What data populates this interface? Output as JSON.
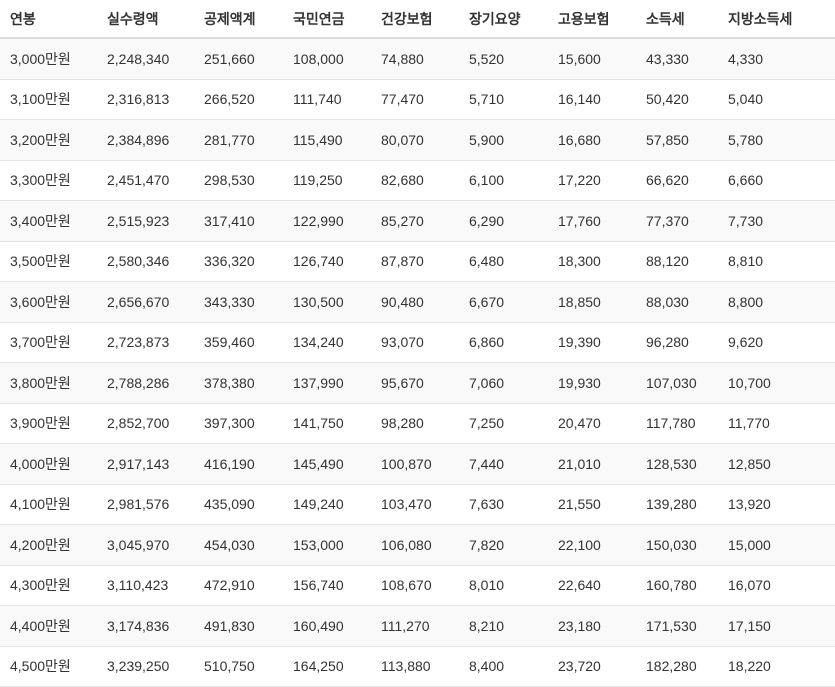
{
  "table": {
    "header": [
      "연봉",
      "실수령액",
      "공제액계",
      "국민연금",
      "건강보험",
      "장기요양",
      "고용보험",
      "소득세",
      "지방소득세"
    ],
    "rows": [
      [
        "3,000만원",
        "2,248,340",
        "251,660",
        "108,000",
        "74,880",
        "5,520",
        "15,600",
        "43,330",
        "4,330"
      ],
      [
        "3,100만원",
        "2,316,813",
        "266,520",
        "111,740",
        "77,470",
        "5,710",
        "16,140",
        "50,420",
        "5,040"
      ],
      [
        "3,200만원",
        "2,384,896",
        "281,770",
        "115,490",
        "80,070",
        "5,900",
        "16,680",
        "57,850",
        "5,780"
      ],
      [
        "3,300만원",
        "2,451,470",
        "298,530",
        "119,250",
        "82,680",
        "6,100",
        "17,220",
        "66,620",
        "6,660"
      ],
      [
        "3,400만원",
        "2,515,923",
        "317,410",
        "122,990",
        "85,270",
        "6,290",
        "17,760",
        "77,370",
        "7,730"
      ],
      [
        "3,500만원",
        "2,580,346",
        "336,320",
        "126,740",
        "87,870",
        "6,480",
        "18,300",
        "88,120",
        "8,810"
      ],
      [
        "3,600만원",
        "2,656,670",
        "343,330",
        "130,500",
        "90,480",
        "6,670",
        "18,850",
        "88,030",
        "8,800"
      ],
      [
        "3,700만원",
        "2,723,873",
        "359,460",
        "134,240",
        "93,070",
        "6,860",
        "19,390",
        "96,280",
        "9,620"
      ],
      [
        "3,800만원",
        "2,788,286",
        "378,380",
        "137,990",
        "95,670",
        "7,060",
        "19,930",
        "107,030",
        "10,700"
      ],
      [
        "3,900만원",
        "2,852,700",
        "397,300",
        "141,750",
        "98,280",
        "7,250",
        "20,470",
        "117,780",
        "11,770"
      ],
      [
        "4,000만원",
        "2,917,143",
        "416,190",
        "145,490",
        "100,870",
        "7,440",
        "21,010",
        "128,530",
        "12,850"
      ],
      [
        "4,100만원",
        "2,981,576",
        "435,090",
        "149,240",
        "103,470",
        "7,630",
        "21,550",
        "139,280",
        "13,920"
      ],
      [
        "4,200만원",
        "3,045,970",
        "454,030",
        "153,000",
        "106,080",
        "7,820",
        "22,100",
        "150,030",
        "15,000"
      ],
      [
        "4,300만원",
        "3,110,423",
        "472,910",
        "156,740",
        "108,670",
        "8,010",
        "22,640",
        "160,780",
        "16,070"
      ],
      [
        "4,400만원",
        "3,174,836",
        "491,830",
        "160,490",
        "111,270",
        "8,210",
        "23,180",
        "171,530",
        "17,150"
      ],
      [
        "4,500만원",
        "3,239,250",
        "510,750",
        "164,250",
        "113,880",
        "8,400",
        "23,720",
        "182,280",
        "18,220"
      ]
    ]
  }
}
